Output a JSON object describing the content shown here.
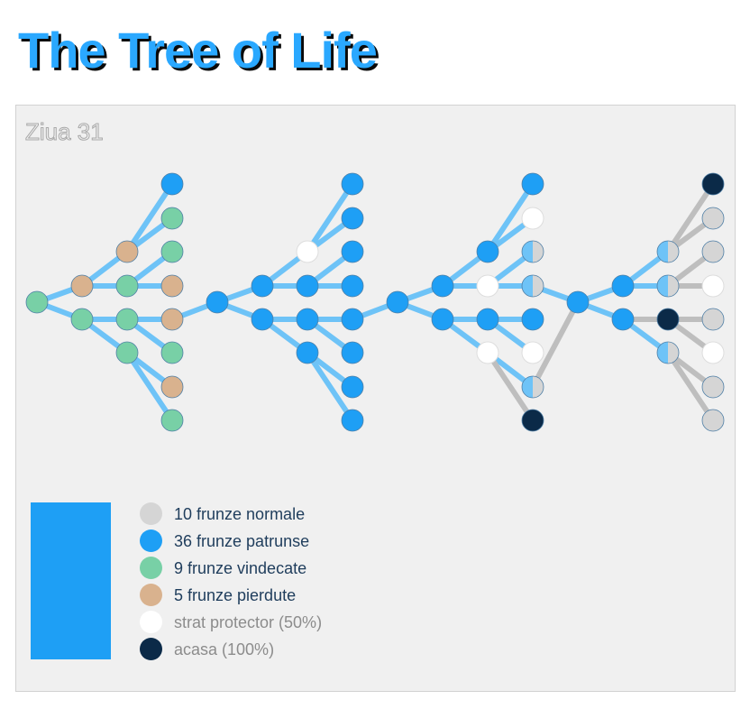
{
  "title": "The Tree of Life",
  "day_label": "Ziua 31",
  "colors": {
    "normal": "#d5d5d5",
    "infected": "#1e9ff5",
    "healed": "#78d0a6",
    "lost": "#d9b28e",
    "protector": "#ffffff",
    "home": "#0b2a48",
    "branch_blue": "#6ec3f7",
    "branch_gray": "#bebebe",
    "node_stroke": "#4f7fa6"
  },
  "bar": {
    "color": "#1e9ff5"
  },
  "legend": [
    {
      "state": "normal",
      "label": "10 frunze normale"
    },
    {
      "state": "infected",
      "label": "36 frunze patrunse"
    },
    {
      "state": "healed",
      "label": "9 frunze vindecate"
    },
    {
      "state": "lost",
      "label": "5 frunze pierdute"
    },
    {
      "state": "protector",
      "label": "strat protector (50%)"
    },
    {
      "state": "home",
      "label": "acasa (100%)"
    }
  ],
  "tree": {
    "nodes": [
      {
        "id": "r1",
        "state": "healed"
      },
      {
        "id": "a1",
        "state": "lost"
      },
      {
        "id": "a2",
        "state": "healed"
      },
      {
        "id": "b1",
        "state": "lost"
      },
      {
        "id": "b2",
        "state": "healed"
      },
      {
        "id": "b3",
        "state": "healed"
      },
      {
        "id": "b4",
        "state": "healed"
      },
      {
        "id": "c1",
        "state": "infected"
      },
      {
        "id": "c2",
        "state": "healed"
      },
      {
        "id": "c3",
        "state": "healed"
      },
      {
        "id": "c4",
        "state": "lost"
      },
      {
        "id": "c5",
        "state": "lost"
      },
      {
        "id": "c6",
        "state": "healed"
      },
      {
        "id": "c7",
        "state": "lost"
      },
      {
        "id": "c8",
        "state": "healed"
      },
      {
        "id": "r2",
        "state": "infected"
      },
      {
        "id": "d1",
        "state": "infected"
      },
      {
        "id": "d2",
        "state": "infected"
      },
      {
        "id": "e1",
        "state": "protector"
      },
      {
        "id": "e2",
        "state": "infected"
      },
      {
        "id": "e3",
        "state": "infected"
      },
      {
        "id": "e4",
        "state": "infected"
      },
      {
        "id": "f1",
        "state": "infected"
      },
      {
        "id": "f2",
        "state": "infected"
      },
      {
        "id": "f3",
        "state": "infected"
      },
      {
        "id": "f4",
        "state": "infected"
      },
      {
        "id": "f5",
        "state": "infected"
      },
      {
        "id": "f6",
        "state": "infected"
      },
      {
        "id": "f7",
        "state": "infected"
      },
      {
        "id": "f8",
        "state": "infected"
      },
      {
        "id": "r3",
        "state": "infected"
      },
      {
        "id": "g1",
        "state": "infected"
      },
      {
        "id": "g2",
        "state": "infected"
      },
      {
        "id": "h1",
        "state": "infected"
      },
      {
        "id": "h2",
        "state": "protector"
      },
      {
        "id": "h3",
        "state": "infected"
      },
      {
        "id": "h4",
        "state": "protector"
      },
      {
        "id": "i1",
        "state": "infected"
      },
      {
        "id": "i2",
        "state": "protector"
      },
      {
        "id": "i3",
        "state": "half"
      },
      {
        "id": "i4",
        "state": "half"
      },
      {
        "id": "i5",
        "state": "infected"
      },
      {
        "id": "i6",
        "state": "protector"
      },
      {
        "id": "i7",
        "state": "half"
      },
      {
        "id": "i8",
        "state": "home"
      },
      {
        "id": "r4",
        "state": "infected"
      },
      {
        "id": "j1",
        "state": "infected"
      },
      {
        "id": "j2",
        "state": "infected"
      },
      {
        "id": "k1",
        "state": "half"
      },
      {
        "id": "k2",
        "state": "half"
      },
      {
        "id": "k3",
        "state": "home"
      },
      {
        "id": "k4",
        "state": "half"
      },
      {
        "id": "l1",
        "state": "home"
      },
      {
        "id": "l2",
        "state": "normal"
      },
      {
        "id": "l3",
        "state": "normal"
      },
      {
        "id": "l4",
        "state": "protector"
      },
      {
        "id": "l5",
        "state": "normal"
      },
      {
        "id": "l6",
        "state": "protector"
      },
      {
        "id": "l7",
        "state": "normal"
      },
      {
        "id": "l8",
        "state": "normal"
      }
    ],
    "edges": [
      [
        "r1",
        "a1",
        "blue"
      ],
      [
        "r1",
        "a2",
        "blue"
      ],
      [
        "a1",
        "b1",
        "blue"
      ],
      [
        "a1",
        "b2",
        "blue"
      ],
      [
        "a2",
        "b3",
        "blue"
      ],
      [
        "a2",
        "b4",
        "blue"
      ],
      [
        "b1",
        "c1",
        "blue"
      ],
      [
        "b1",
        "c2",
        "blue"
      ],
      [
        "b2",
        "c3",
        "blue"
      ],
      [
        "b2",
        "c4",
        "blue"
      ],
      [
        "b3",
        "c5",
        "blue"
      ],
      [
        "b3",
        "c6",
        "blue"
      ],
      [
        "b4",
        "c7",
        "blue"
      ],
      [
        "b4",
        "c8",
        "blue"
      ],
      [
        "c5",
        "r2",
        "blue"
      ],
      [
        "r2",
        "d1",
        "blue"
      ],
      [
        "r2",
        "d2",
        "blue"
      ],
      [
        "d1",
        "e1",
        "blue"
      ],
      [
        "d1",
        "e2",
        "blue"
      ],
      [
        "d2",
        "e3",
        "blue"
      ],
      [
        "d2",
        "e4",
        "blue"
      ],
      [
        "e1",
        "f1",
        "blue"
      ],
      [
        "e1",
        "f2",
        "blue"
      ],
      [
        "e2",
        "f3",
        "blue"
      ],
      [
        "e2",
        "f4",
        "blue"
      ],
      [
        "e3",
        "f5",
        "blue"
      ],
      [
        "e3",
        "f6",
        "blue"
      ],
      [
        "e4",
        "f7",
        "blue"
      ],
      [
        "e4",
        "f8",
        "blue"
      ],
      [
        "f5",
        "r3",
        "blue"
      ],
      [
        "r3",
        "g1",
        "blue"
      ],
      [
        "r3",
        "g2",
        "blue"
      ],
      [
        "g1",
        "h1",
        "blue"
      ],
      [
        "g1",
        "h2",
        "blue"
      ],
      [
        "g2",
        "h3",
        "blue"
      ],
      [
        "g2",
        "h4",
        "blue"
      ],
      [
        "h1",
        "i1",
        "blue"
      ],
      [
        "h1",
        "i2",
        "blue"
      ],
      [
        "h2",
        "i3",
        "blue"
      ],
      [
        "h2",
        "i4",
        "blue"
      ],
      [
        "h3",
        "i5",
        "blue"
      ],
      [
        "h3",
        "i6",
        "blue"
      ],
      [
        "h4",
        "i7",
        "blue"
      ],
      [
        "h4",
        "i8",
        "gray"
      ],
      [
        "i4",
        "r4",
        "blue"
      ],
      [
        "i7",
        "r4",
        "gray"
      ],
      [
        "r4",
        "j1",
        "blue"
      ],
      [
        "r4",
        "j2",
        "blue"
      ],
      [
        "j1",
        "k1",
        "blue"
      ],
      [
        "j1",
        "k2",
        "blue"
      ],
      [
        "j2",
        "k3",
        "gray"
      ],
      [
        "j2",
        "k4",
        "blue"
      ],
      [
        "k1",
        "l1",
        "gray"
      ],
      [
        "k1",
        "l2",
        "gray"
      ],
      [
        "k2",
        "l3",
        "gray"
      ],
      [
        "k2",
        "l4",
        "gray"
      ],
      [
        "k3",
        "l5",
        "gray"
      ],
      [
        "k3",
        "l6",
        "gray"
      ],
      [
        "k4",
        "l7",
        "gray"
      ],
      [
        "k4",
        "l8",
        "gray"
      ]
    ]
  }
}
